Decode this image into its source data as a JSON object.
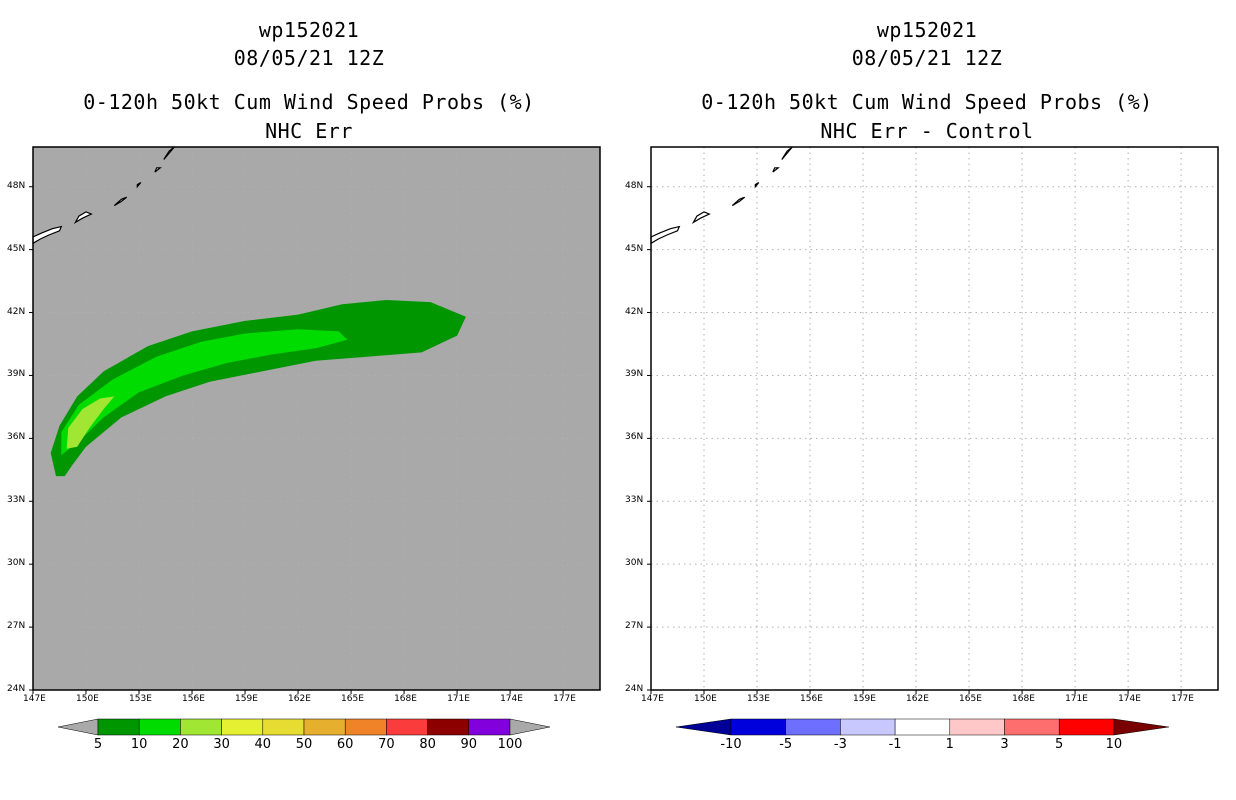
{
  "left_panel": {
    "title_line1": "wp152021",
    "title_line2": "08/05/21 12Z",
    "title_line3": "0-120h 50kt Cum Wind Speed Probs (%)",
    "title_line4": "NHC Err",
    "background_color": "#a9a9a9",
    "colorbar": {
      "labels": [
        "5",
        "10",
        "20",
        "30",
        "40",
        "50",
        "60",
        "70",
        "80",
        "90",
        "100"
      ],
      "colors": [
        "#009600",
        "#00dc00",
        "#a0e632",
        "#e6f032",
        "#e6dc32",
        "#e6af2d",
        "#f08228",
        "#fa3c3c",
        "#8c0000",
        "#8200dc"
      ],
      "under_color": "#a9a9a9",
      "over_color": "#a9a9a9"
    }
  },
  "right_panel": {
    "title_line1": "wp152021",
    "title_line2": "08/05/21 12Z",
    "title_line3": "0-120h 50kt Cum Wind Speed Probs (%)",
    "title_line4": "NHC Err - Control",
    "background_color": "#ffffff",
    "colorbar": {
      "labels": [
        "-10",
        "-5",
        "-3",
        "-1",
        "1",
        "3",
        "5",
        "10"
      ],
      "colors": [
        "#0000dc",
        "#6e6eff",
        "#c8c8ff",
        "#ffffff",
        "#ffc8c8",
        "#ff6e6e",
        "#ff0000"
      ],
      "under_color": "#000096",
      "over_color": "#780000"
    }
  },
  "axes": {
    "lon_labels": [
      "147E",
      "150E",
      "153E",
      "156E",
      "159E",
      "162E",
      "165E",
      "168E",
      "171E",
      "174E",
      "177E"
    ],
    "lat_labels": [
      "24N",
      "27N",
      "30N",
      "33N",
      "36N",
      "39N",
      "42N",
      "45N",
      "48N"
    ]
  },
  "chart_data": {
    "type": "map",
    "lon_range": [
      147,
      179.5
    ],
    "lat_range": [
      24,
      49
    ],
    "probability_contours_percent": [
      {
        "level": 5,
        "color": "#009600",
        "polygon_lonlat": [
          [
            148.3,
            34.2
          ],
          [
            148.0,
            35.3
          ],
          [
            148.5,
            36.6
          ],
          [
            149.5,
            38.0
          ],
          [
            151.0,
            39.2
          ],
          [
            153.5,
            40.4
          ],
          [
            156.0,
            41.1
          ],
          [
            159.0,
            41.6
          ],
          [
            162.0,
            41.9
          ],
          [
            164.5,
            42.4
          ],
          [
            167.0,
            42.6
          ],
          [
            169.5,
            42.5
          ],
          [
            171.5,
            41.8
          ],
          [
            171.0,
            40.9
          ],
          [
            169.0,
            40.1
          ],
          [
            166.0,
            39.9
          ],
          [
            163.0,
            39.7
          ],
          [
            160.0,
            39.2
          ],
          [
            157.0,
            38.7
          ],
          [
            154.5,
            38.0
          ],
          [
            152.0,
            37.0
          ],
          [
            150.0,
            35.6
          ],
          [
            149.2,
            34.7
          ],
          [
            148.8,
            34.2
          ]
        ]
      },
      {
        "level": 10,
        "color": "#00dc00",
        "polygon_lonlat": [
          [
            148.6,
            35.2
          ],
          [
            148.6,
            36.3
          ],
          [
            149.6,
            37.6
          ],
          [
            151.5,
            38.8
          ],
          [
            154.0,
            39.9
          ],
          [
            156.5,
            40.6
          ],
          [
            159.0,
            41.0
          ],
          [
            162.0,
            41.2
          ],
          [
            164.3,
            41.1
          ],
          [
            164.8,
            40.7
          ],
          [
            163.0,
            40.3
          ],
          [
            160.5,
            40.0
          ],
          [
            158.0,
            39.6
          ],
          [
            155.5,
            39.0
          ],
          [
            153.0,
            38.2
          ],
          [
            151.0,
            37.0
          ],
          [
            149.5,
            35.8
          ]
        ]
      },
      {
        "level": 20,
        "color": "#a0e632",
        "polygon_lonlat": [
          [
            148.9,
            35.5
          ],
          [
            149.0,
            36.5
          ],
          [
            149.8,
            37.4
          ],
          [
            150.8,
            37.9
          ],
          [
            151.6,
            38.0
          ],
          [
            151.0,
            37.4
          ],
          [
            150.2,
            36.5
          ],
          [
            149.5,
            35.6
          ]
        ]
      }
    ],
    "coastline_note": "Kuril Islands outline drawn in upper-left of both panels"
  }
}
